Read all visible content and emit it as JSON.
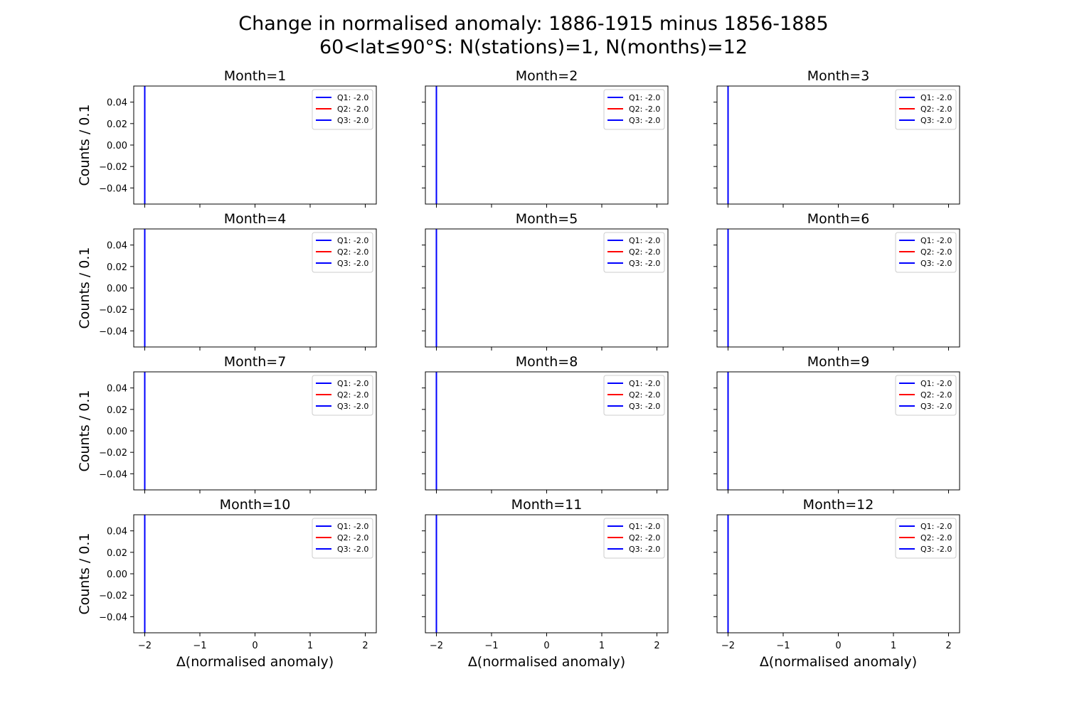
{
  "figure": {
    "title_line1": "Change in normalised anomaly: 1886-1915 minus 1856-1885",
    "title_line2": "60<lat≤90°S: N(stations)=1, N(months)=12"
  },
  "chart_data": {
    "type": "line",
    "layout": "small-multiples 4x3",
    "xlabel": "Δ(normalised anomaly)",
    "ylabel": "Counts / 0.1",
    "xlim": [
      -2.2,
      2.2
    ],
    "ylim": [
      -0.055,
      0.055
    ],
    "xticks": [
      -2,
      -1,
      0,
      1,
      2
    ],
    "xtick_labels": [
      "−2",
      "−1",
      "0",
      "1",
      "2"
    ],
    "yticks": [
      0.04,
      0.02,
      0.0,
      -0.02,
      -0.04
    ],
    "ytick_labels": [
      "0.04",
      "0.02",
      "0.00",
      "−0.02",
      "−0.04"
    ],
    "legend_position": "upper right",
    "colors": {
      "Q1": "#0000ff",
      "Q2": "#ff0000",
      "Q3": "#0000ff"
    },
    "panels": [
      {
        "title": "Month=1",
        "vlines": [
          {
            "label": "Q1: -2.0",
            "x": -2.0,
            "color": "#0000ff"
          },
          {
            "label": "Q2: -2.0",
            "x": -2.0,
            "color": "#ff0000"
          },
          {
            "label": "Q3: -2.0",
            "x": -2.0,
            "color": "#0000ff"
          }
        ]
      },
      {
        "title": "Month=2",
        "vlines": [
          {
            "label": "Q1: -2.0",
            "x": -2.0,
            "color": "#0000ff"
          },
          {
            "label": "Q2: -2.0",
            "x": -2.0,
            "color": "#ff0000"
          },
          {
            "label": "Q3: -2.0",
            "x": -2.0,
            "color": "#0000ff"
          }
        ]
      },
      {
        "title": "Month=3",
        "vlines": [
          {
            "label": "Q1: -2.0",
            "x": -2.0,
            "color": "#0000ff"
          },
          {
            "label": "Q2: -2.0",
            "x": -2.0,
            "color": "#ff0000"
          },
          {
            "label": "Q3: -2.0",
            "x": -2.0,
            "color": "#0000ff"
          }
        ]
      },
      {
        "title": "Month=4",
        "vlines": [
          {
            "label": "Q1: -2.0",
            "x": -2.0,
            "color": "#0000ff"
          },
          {
            "label": "Q2: -2.0",
            "x": -2.0,
            "color": "#ff0000"
          },
          {
            "label": "Q3: -2.0",
            "x": -2.0,
            "color": "#0000ff"
          }
        ]
      },
      {
        "title": "Month=5",
        "vlines": [
          {
            "label": "Q1: -2.0",
            "x": -2.0,
            "color": "#0000ff"
          },
          {
            "label": "Q2: -2.0",
            "x": -2.0,
            "color": "#ff0000"
          },
          {
            "label": "Q3: -2.0",
            "x": -2.0,
            "color": "#0000ff"
          }
        ]
      },
      {
        "title": "Month=6",
        "vlines": [
          {
            "label": "Q1: -2.0",
            "x": -2.0,
            "color": "#0000ff"
          },
          {
            "label": "Q2: -2.0",
            "x": -2.0,
            "color": "#ff0000"
          },
          {
            "label": "Q3: -2.0",
            "x": -2.0,
            "color": "#0000ff"
          }
        ]
      },
      {
        "title": "Month=7",
        "vlines": [
          {
            "label": "Q1: -2.0",
            "x": -2.0,
            "color": "#0000ff"
          },
          {
            "label": "Q2: -2.0",
            "x": -2.0,
            "color": "#ff0000"
          },
          {
            "label": "Q3: -2.0",
            "x": -2.0,
            "color": "#0000ff"
          }
        ]
      },
      {
        "title": "Month=8",
        "vlines": [
          {
            "label": "Q1: -2.0",
            "x": -2.0,
            "color": "#0000ff"
          },
          {
            "label": "Q2: -2.0",
            "x": -2.0,
            "color": "#ff0000"
          },
          {
            "label": "Q3: -2.0",
            "x": -2.0,
            "color": "#0000ff"
          }
        ]
      },
      {
        "title": "Month=9",
        "vlines": [
          {
            "label": "Q1: -2.0",
            "x": -2.0,
            "color": "#0000ff"
          },
          {
            "label": "Q2: -2.0",
            "x": -2.0,
            "color": "#ff0000"
          },
          {
            "label": "Q3: -2.0",
            "x": -2.0,
            "color": "#0000ff"
          }
        ]
      },
      {
        "title": "Month=10",
        "vlines": [
          {
            "label": "Q1: -2.0",
            "x": -2.0,
            "color": "#0000ff"
          },
          {
            "label": "Q2: -2.0",
            "x": -2.0,
            "color": "#ff0000"
          },
          {
            "label": "Q3: -2.0",
            "x": -2.0,
            "color": "#0000ff"
          }
        ]
      },
      {
        "title": "Month=11",
        "vlines": [
          {
            "label": "Q1: -2.0",
            "x": -2.0,
            "color": "#0000ff"
          },
          {
            "label": "Q2: -2.0",
            "x": -2.0,
            "color": "#ff0000"
          },
          {
            "label": "Q3: -2.0",
            "x": -2.0,
            "color": "#0000ff"
          }
        ]
      },
      {
        "title": "Month=12",
        "vlines": [
          {
            "label": "Q1: -2.0",
            "x": -2.0,
            "color": "#0000ff"
          },
          {
            "label": "Q2: -2.0",
            "x": -2.0,
            "color": "#ff0000"
          },
          {
            "label": "Q3: -2.0",
            "x": -2.0,
            "color": "#0000ff"
          }
        ]
      }
    ]
  }
}
